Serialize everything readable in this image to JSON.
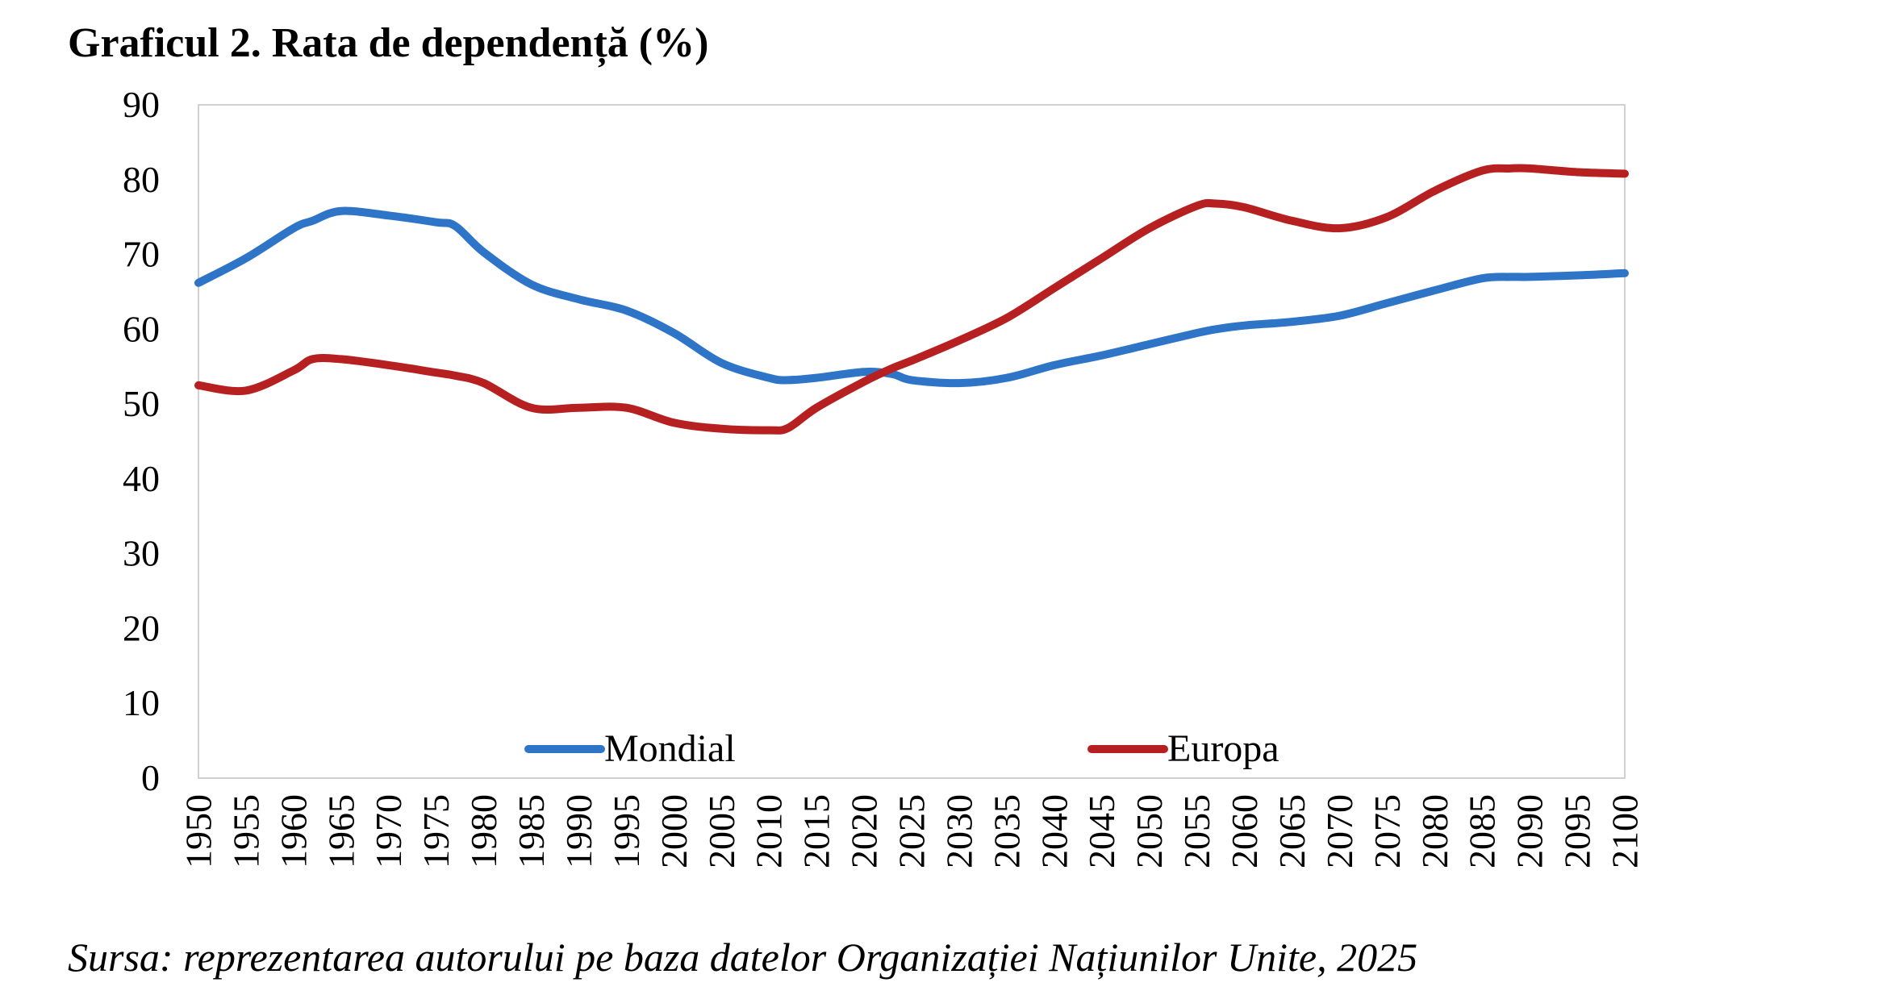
{
  "chart_data": {
    "type": "line",
    "title": "Graficul 2. Rata de dependență (%)",
    "source": "Sursa: reprezentarea autorului pe baza datelor Organizației Națiunilor Unite, 2025",
    "xlabel": "",
    "ylabel": "",
    "ylim": [
      0,
      90
    ],
    "xlim": [
      1950,
      2100
    ],
    "y_ticks": [
      "0",
      "10",
      "20",
      "30",
      "40",
      "50",
      "60",
      "70",
      "80",
      "90"
    ],
    "x_ticks": [
      "1950",
      "1955",
      "1960",
      "1965",
      "1970",
      "1975",
      "1980",
      "1985",
      "1990",
      "1995",
      "2000",
      "2005",
      "2010",
      "2015",
      "2020",
      "2025",
      "2030",
      "2035",
      "2040",
      "2045",
      "2050",
      "2055",
      "2060",
      "2065",
      "2070",
      "2075",
      "2080",
      "2085",
      "2090",
      "2095",
      "2100"
    ],
    "grid": false,
    "legend_position": "bottom-inside",
    "x": [
      1950,
      1955,
      1960,
      1962,
      1965,
      1970,
      1975,
      1977,
      1980,
      1985,
      1990,
      1995,
      2000,
      2005,
      2010,
      2012,
      2015,
      2020,
      2023,
      2025,
      2030,
      2035,
      2040,
      2045,
      2050,
      2055,
      2057,
      2060,
      2065,
      2070,
      2075,
      2080,
      2085,
      2088,
      2090,
      2095,
      2100
    ],
    "series": [
      {
        "name": "Mondial",
        "color": "#2e75c8",
        "values": [
          66.2,
          69.5,
          73.5,
          74.5,
          75.8,
          75.2,
          74.3,
          73.8,
          70.3,
          66.0,
          64.0,
          62.5,
          59.5,
          55.5,
          53.5,
          53.2,
          53.5,
          54.3,
          54.0,
          53.2,
          52.8,
          53.5,
          55.2,
          56.5,
          58.0,
          59.5,
          60.0,
          60.5,
          61.0,
          61.8,
          63.5,
          65.2,
          66.8,
          67.0,
          67.0,
          67.2,
          67.5
        ]
      },
      {
        "name": "Europa",
        "color": "#b72020",
        "values": [
          52.5,
          51.8,
          54.5,
          56.0,
          56.0,
          55.2,
          54.2,
          53.8,
          52.8,
          49.5,
          49.5,
          49.5,
          47.5,
          46.7,
          46.5,
          46.8,
          49.5,
          53.0,
          54.8,
          55.8,
          58.5,
          61.5,
          65.5,
          69.5,
          73.5,
          76.5,
          76.8,
          76.3,
          74.5,
          73.5,
          75.0,
          78.5,
          81.2,
          81.5,
          81.5,
          81.0,
          80.8
        ]
      }
    ]
  }
}
